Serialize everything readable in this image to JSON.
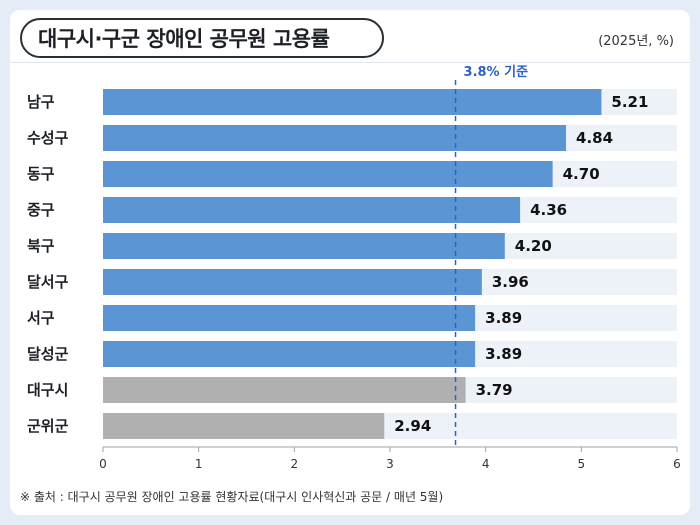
{
  "header": {
    "title": "대구시·구군 장애인 공무원 고용률",
    "unit": "(2025년, %)"
  },
  "footer": {
    "source": "※ 출처 : 대구시 공무원 장애인 고용률 현황자료(대구시 인사혁신과 공문 / 매년 5월)"
  },
  "chart_data": {
    "type": "bar",
    "orientation": "horizontal",
    "title": "대구시·구군 장애인 공무원 고용률",
    "unit": "(2025년, %)",
    "categories": [
      "남구",
      "수성구",
      "동구",
      "중구",
      "북구",
      "달서구",
      "서구",
      "달성군",
      "대구시",
      "군위군"
    ],
    "values": [
      5.21,
      4.84,
      4.7,
      4.36,
      4.2,
      3.96,
      3.89,
      3.89,
      3.79,
      2.94
    ],
    "value_labels": [
      "5.21",
      "4.84",
      "4.70",
      "4.36",
      "4.20",
      "3.96",
      "3.89",
      "3.89",
      "3.79",
      "2.94"
    ],
    "xlim": [
      0,
      6
    ],
    "xticks": [
      0,
      1,
      2,
      3,
      4,
      5,
      6
    ],
    "reference_line": {
      "value": 3.8,
      "label": "3.8% 기준"
    },
    "colors": {
      "primary": "#5b95d3",
      "secondary": "#b0b0b0",
      "track": "#edf2f9",
      "reference": "#2a63c4"
    },
    "secondary_categories": [
      "대구시",
      "군위군"
    ],
    "grid": false,
    "legend": "none"
  }
}
